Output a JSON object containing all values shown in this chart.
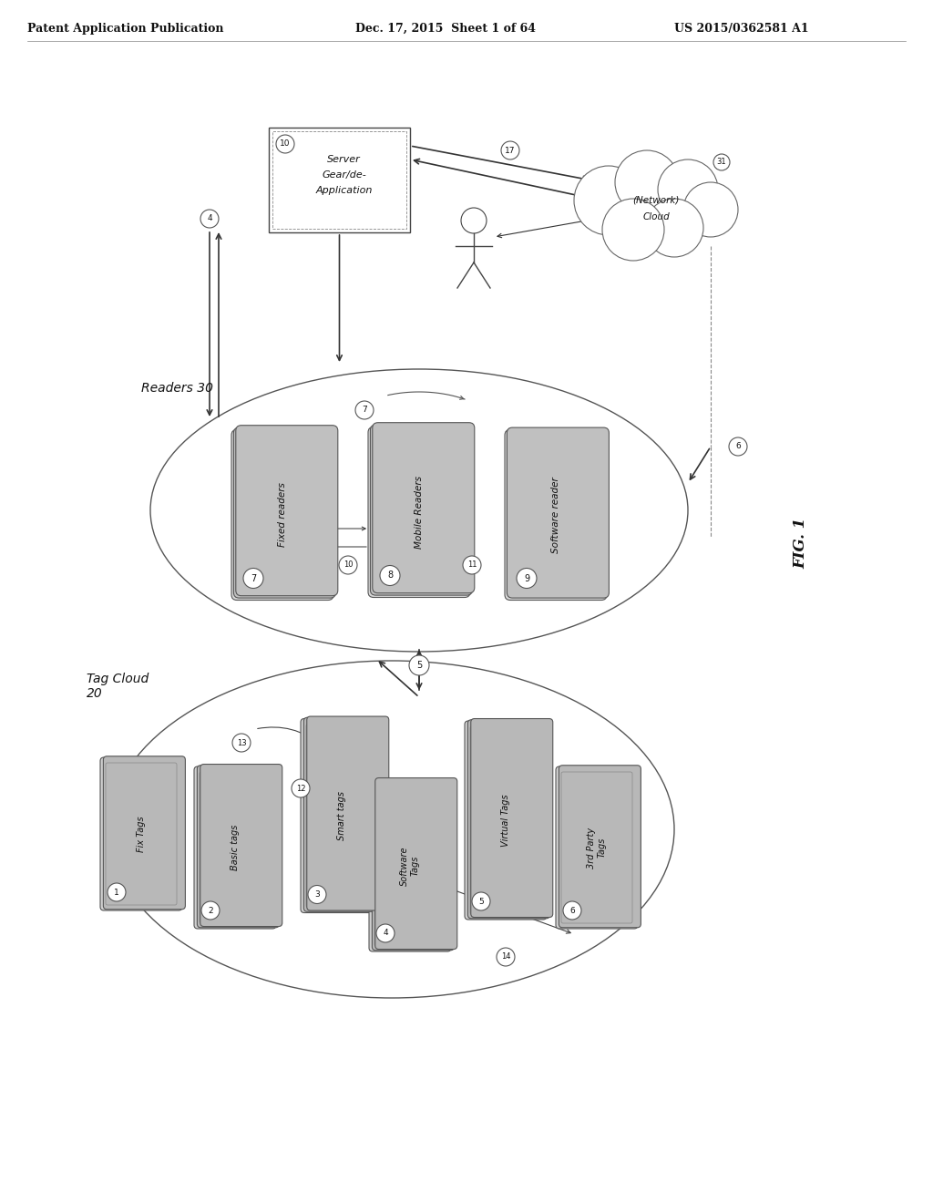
{
  "header_left": "Patent Application Publication",
  "header_mid": "Dec. 17, 2015  Sheet 1 of 64",
  "header_right": "US 2015/0362581 A1",
  "fig_label": "FIG. 1",
  "readers_label": "Readers 30",
  "tag_cloud_label": "Tag Cloud\n20",
  "server_lines": [
    "(10)",
    "Server",
    "Gear/de-",
    "Application"
  ],
  "cloud_label": "(Network)\nCloud",
  "bg_color": "#ffffff"
}
